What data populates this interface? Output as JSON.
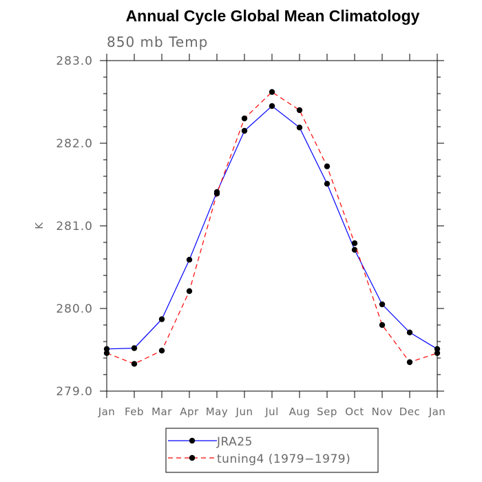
{
  "chart_data": {
    "type": "line",
    "title": "Annual Cycle Global Mean Climatology",
    "subtitle": "850 mb Temp",
    "xlabel": "",
    "ylabel": "K",
    "categories": [
      "Jan",
      "Feb",
      "Mar",
      "Apr",
      "May",
      "Jun",
      "Jul",
      "Aug",
      "Sep",
      "Oct",
      "Nov",
      "Dec",
      "Jan"
    ],
    "yticks": [
      "279.0",
      "280.0",
      "281.0",
      "282.0",
      "283.0"
    ],
    "ylim": [
      279.0,
      283.0
    ],
    "grid": false,
    "legend_position": "bottom",
    "series": [
      {
        "name": "JRA25",
        "color": "#0000ff",
        "line_style": "solid",
        "marker": "filled-circle",
        "values": [
          279.51,
          279.52,
          279.87,
          280.59,
          281.41,
          282.15,
          282.45,
          282.19,
          281.51,
          280.71,
          280.05,
          279.71,
          279.51
        ]
      },
      {
        "name": "tuning4 (1979−1979)",
        "color": "#ff0000",
        "line_style": "dashed",
        "marker": "filled-circle",
        "values": [
          279.46,
          279.33,
          279.49,
          280.21,
          281.39,
          282.3,
          282.62,
          282.4,
          281.72,
          280.79,
          279.8,
          279.35,
          279.46
        ]
      }
    ]
  }
}
